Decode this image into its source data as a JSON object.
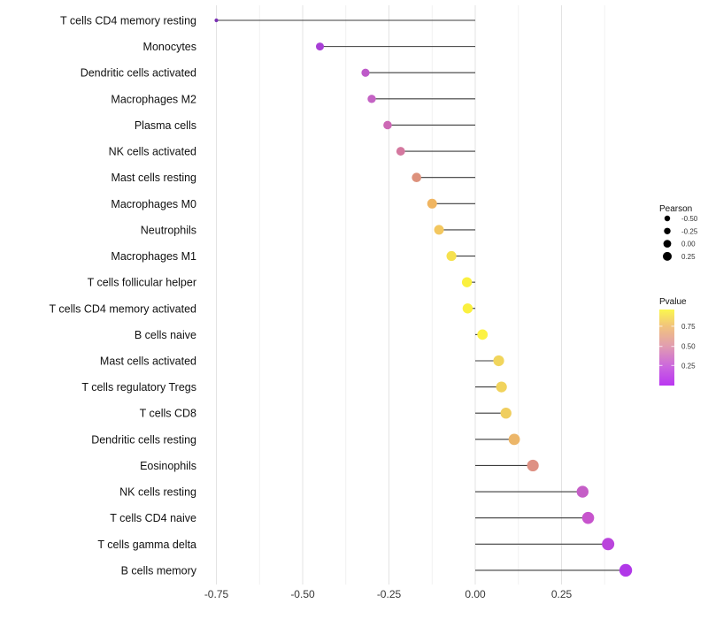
{
  "chart_data": {
    "type": "scatter",
    "variant": "lollipop",
    "title": "",
    "xlabel": "",
    "ylabel": "",
    "xlim": [
      -0.792,
      0.462
    ],
    "grid": true,
    "baseline": 0,
    "x_ticks": [
      {
        "value": -0.75,
        "label": "-0.75"
      },
      {
        "value": -0.5,
        "label": "-0.50"
      },
      {
        "value": -0.25,
        "label": "-0.25"
      },
      {
        "value": 0.0,
        "label": "0.00"
      },
      {
        "value": 0.25,
        "label": "0.25"
      }
    ],
    "x_minor_ticks": [
      -0.625,
      -0.375,
      -0.125,
      0.125,
      0.375
    ],
    "points": [
      {
        "label": "T cells CD4 memory resting",
        "pearson": -0.75,
        "color": "#7A31B4",
        "radius": 2.1
      },
      {
        "label": "Monocytes",
        "pearson": -0.45,
        "color": "#A83FD6",
        "radius": 4.5
      },
      {
        "label": "Dendritic cells activated",
        "pearson": -0.318,
        "color": "#BE5AC9",
        "radius": 4.6
      },
      {
        "label": "Macrophages M2",
        "pearson": -0.3,
        "color": "#C463C4",
        "radius": 4.7
      },
      {
        "label": "Plasma cells",
        "pearson": -0.254,
        "color": "#CD68B5",
        "radius": 4.8
      },
      {
        "label": "NK cells activated",
        "pearson": -0.216,
        "color": "#D4789F",
        "radius": 4.9
      },
      {
        "label": "Mast cells resting",
        "pearson": -0.17,
        "color": "#DD917C",
        "radius": 5.3
      },
      {
        "label": "Macrophages M0",
        "pearson": -0.125,
        "color": "#F0B561",
        "radius": 5.5
      },
      {
        "label": "Neutrophils",
        "pearson": -0.105,
        "color": "#F3C75F",
        "radius": 5.5
      },
      {
        "label": "Macrophages M1",
        "pearson": -0.069,
        "color": "#F6E14E",
        "radius": 5.6
      },
      {
        "label": "T cells follicular helper",
        "pearson": -0.024,
        "color": "#FAF03F",
        "radius": 5.7
      },
      {
        "label": "T cells CD4 memory activated",
        "pearson": -0.022,
        "color": "#FAF03F",
        "radius": 5.7
      },
      {
        "label": "B cells naive",
        "pearson": 0.021,
        "color": "#FCF243",
        "radius": 5.9
      },
      {
        "label": "Mast cells activated",
        "pearson": 0.068,
        "color": "#F1D55C",
        "radius": 6.1
      },
      {
        "label": "T cells regulatory  Tregs",
        "pearson": 0.076,
        "color": "#F1D35C",
        "radius": 6.1
      },
      {
        "label": "T cells CD8",
        "pearson": 0.089,
        "color": "#F0CE5E",
        "radius": 6.2
      },
      {
        "label": "Dendritic cells resting",
        "pearson": 0.113,
        "color": "#ECB669",
        "radius": 6.4
      },
      {
        "label": "Eosinophils",
        "pearson": 0.167,
        "color": "#DE9184",
        "radius": 6.6
      },
      {
        "label": "NK cells resting",
        "pearson": 0.311,
        "color": "#C55EC7",
        "radius": 6.7
      },
      {
        "label": "T cells CD4 naive",
        "pearson": 0.327,
        "color": "#C754CD",
        "radius": 6.8
      },
      {
        "label": "T cells gamma delta",
        "pearson": 0.385,
        "color": "#BA45DC",
        "radius": 7.0
      },
      {
        "label": "B cells memory",
        "pearson": 0.436,
        "color": "#B138E8",
        "radius": 7.2
      }
    ],
    "legends": {
      "size": {
        "title": "Pearson",
        "entries": [
          {
            "label": "-0.50",
            "radius": 3.2
          },
          {
            "label": "-0.25",
            "radius": 3.7
          },
          {
            "label": "0.00",
            "radius": 4.4
          },
          {
            "label": "0.25",
            "radius": 5.0
          }
        ],
        "dot_color": "#000000"
      },
      "color": {
        "title": "Pvalue",
        "ticks": [
          {
            "label": "0.75",
            "t": 0.22
          },
          {
            "label": "0.50",
            "t": 0.485
          },
          {
            "label": "0.25",
            "t": 0.736
          }
        ],
        "gradient": [
          {
            "t": 0.0,
            "color": "#FBF74E"
          },
          {
            "t": 0.21,
            "color": "#F2C57B"
          },
          {
            "t": 0.48,
            "color": "#E19DB0"
          },
          {
            "t": 0.75,
            "color": "#CB66DE"
          },
          {
            "t": 1.0,
            "color": "#BA36F1"
          }
        ]
      }
    },
    "colors": {
      "stem": "#3C3C3C",
      "grid_major": "#E3E3E3",
      "grid_minor": "#F1F1F1",
      "background": "#FFFFFF"
    }
  }
}
